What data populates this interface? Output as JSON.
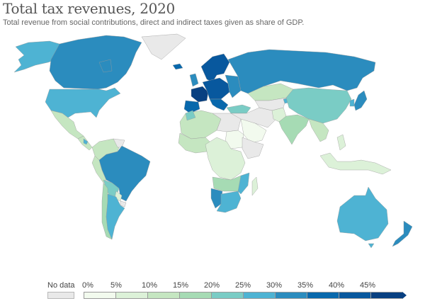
{
  "header": {
    "title": "Total tax revenues, 2020",
    "subtitle": "Total revenue from social contributions, direct and indirect taxes given as share of GDP."
  },
  "legend": {
    "no_data_label": "No data",
    "no_data_color": "#e9e9e9",
    "ticks": [
      "0%",
      "5%",
      "10%",
      "15%",
      "20%",
      "25%",
      "30%",
      "35%",
      "40%",
      "45%"
    ],
    "bins": [
      {
        "range": "0-5",
        "color": "#f2faee"
      },
      {
        "range": "5-10",
        "color": "#dcf1d8"
      },
      {
        "range": "10-15",
        "color": "#c5e6c1"
      },
      {
        "range": "15-20",
        "color": "#a6dbb4"
      },
      {
        "range": "20-25",
        "color": "#7accc5"
      },
      {
        "range": "25-30",
        "color": "#4eb3d3"
      },
      {
        "range": "30-35",
        "color": "#2b8cbe"
      },
      {
        "range": "35-40",
        "color": "#0868ac"
      },
      {
        "range": "40-45",
        "color": "#08589e"
      },
      {
        "range": "45+",
        "color": "#084081"
      }
    ]
  },
  "chart_data": {
    "type": "choropleth",
    "title": "Total tax revenues, 2020",
    "subtitle": "Total revenue from social contributions, direct and indirect taxes given as share of GDP.",
    "unit": "% of GDP",
    "scale_breaks": [
      0,
      5,
      10,
      15,
      20,
      25,
      30,
      35,
      40,
      45
    ],
    "regions": [
      {
        "name": "Canada",
        "bin": "30-35"
      },
      {
        "name": "United States",
        "bin": "25-30"
      },
      {
        "name": "Alaska",
        "bin": "25-30"
      },
      {
        "name": "Greenland",
        "bin": "no-data"
      },
      {
        "name": "Mexico",
        "bin": "10-15"
      },
      {
        "name": "Central America",
        "bin": "10-15"
      },
      {
        "name": "Colombia/Venezuela",
        "bin": "10-15"
      },
      {
        "name": "Peru",
        "bin": "10-15"
      },
      {
        "name": "Brazil",
        "bin": "30-35"
      },
      {
        "name": "Bolivia",
        "bin": "20-25"
      },
      {
        "name": "Chile",
        "bin": "15-20"
      },
      {
        "name": "Argentina",
        "bin": "25-30"
      },
      {
        "name": "Western Europe",
        "bin": "40-45"
      },
      {
        "name": "France",
        "bin": "45+"
      },
      {
        "name": "Iberia",
        "bin": "35-40"
      },
      {
        "name": "Scandinavia",
        "bin": "40-45"
      },
      {
        "name": "Russia",
        "bin": "30-35"
      },
      {
        "name": "Kazakhstan",
        "bin": "10-15"
      },
      {
        "name": "China",
        "bin": "20-25"
      },
      {
        "name": "Japan",
        "bin": "30-35"
      },
      {
        "name": "India",
        "bin": "15-20"
      },
      {
        "name": "Middle East",
        "bin": "no-data"
      },
      {
        "name": "Saudi Arabia",
        "bin": "0-5"
      },
      {
        "name": "North Africa",
        "bin": "10-15"
      },
      {
        "name": "Sahel",
        "bin": "no-data"
      },
      {
        "name": "Central Africa",
        "bin": "5-10"
      },
      {
        "name": "Southern Africa",
        "bin": "25-30"
      },
      {
        "name": "Namibia",
        "bin": "30-35"
      },
      {
        "name": "Southeast Asia",
        "bin": "10-15"
      },
      {
        "name": "Indonesia",
        "bin": "5-10"
      },
      {
        "name": "Australia",
        "bin": "25-30"
      },
      {
        "name": "New Zealand",
        "bin": "30-35"
      }
    ]
  }
}
